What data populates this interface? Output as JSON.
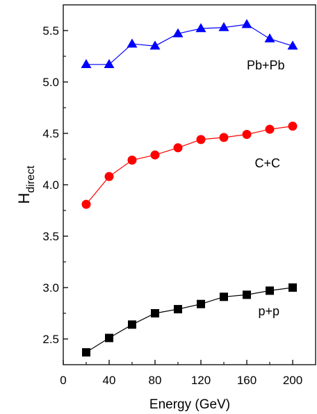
{
  "chart_data": {
    "type": "line",
    "xlabel": "Energy (GeV)",
    "ylabel_main": "H",
    "ylabel_sub": "direct",
    "xlim": [
      0,
      220
    ],
    "ylim": [
      2.25,
      5.75
    ],
    "xticks": [
      0,
      40,
      80,
      120,
      160,
      200
    ],
    "xtick_labels": [
      "0",
      "40",
      "80",
      "120",
      "160",
      "200"
    ],
    "yticks": [
      2.5,
      3.0,
      3.5,
      4.0,
      4.5,
      5.0,
      5.5
    ],
    "ytick_labels": [
      "2.5",
      "3.0",
      "3.5",
      "4.0",
      "4.5",
      "5.0",
      "5.5"
    ],
    "grid": false,
    "legend": "none",
    "x": [
      20,
      40,
      60,
      80,
      100,
      120,
      140,
      160,
      180,
      200
    ],
    "series": [
      {
        "name": "Pb+Pb",
        "label": "Pb+Pb",
        "marker": "triangle",
        "color": "#0000ff",
        "values": [
          5.17,
          5.17,
          5.37,
          5.35,
          5.47,
          5.52,
          5.53,
          5.56,
          5.42,
          5.35
        ],
        "label_at": [
          160,
          5.12
        ]
      },
      {
        "name": "C+C",
        "label": "C+C",
        "marker": "circle",
        "color": "#ff0000",
        "values": [
          3.81,
          4.08,
          4.24,
          4.29,
          4.36,
          4.44,
          4.46,
          4.49,
          4.54,
          4.57
        ],
        "label_at": [
          167,
          4.17
        ]
      },
      {
        "name": "p+p",
        "label": "p+p",
        "marker": "square",
        "color": "#000000",
        "values": [
          2.37,
          2.51,
          2.64,
          2.75,
          2.79,
          2.84,
          2.91,
          2.93,
          2.97,
          3.0
        ],
        "label_at": [
          170,
          2.73
        ]
      }
    ]
  }
}
